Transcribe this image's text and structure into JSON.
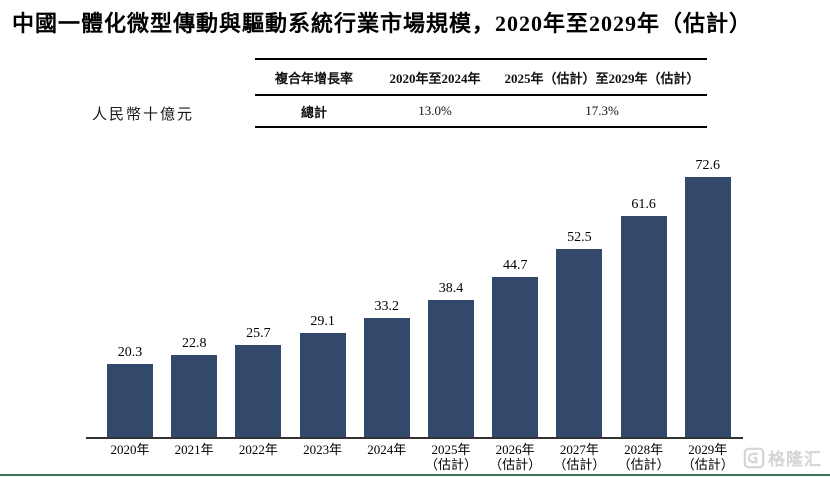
{
  "title": "中國一體化微型傳動與驅動系統行業市場規模，2020年至2029年（估計）",
  "cagr_table": {
    "header": [
      "複合年增長率",
      "2020年至2024年",
      "2025年（估計）至2029年（估計）"
    ],
    "row": [
      "總計",
      "13.0%",
      "17.3%"
    ]
  },
  "chart_data": {
    "type": "bar",
    "title": "中國一體化微型傳動與驅動系統行業市場規模，2020年至2029年（估計）",
    "ylabel": "人民幣十億元",
    "categories": [
      "2020年",
      "2021年",
      "2022年",
      "2023年",
      "2024年",
      "2025年",
      "2026年",
      "2027年",
      "2028年",
      "2029年"
    ],
    "category_sublabels": [
      "",
      "",
      "",
      "",
      "",
      "（估計）",
      "（估計）",
      "（估計）",
      "（估計）",
      "（估計）"
    ],
    "values": [
      20.3,
      22.8,
      25.7,
      29.1,
      33.2,
      38.4,
      44.7,
      52.5,
      61.6,
      72.6
    ],
    "ylim": [
      0,
      75
    ],
    "grid": false,
    "legend": null,
    "data_labels": true,
    "cagr_2020_2024": "13.0%",
    "cagr_2025_2029": "17.3%"
  },
  "watermark": {
    "text": "格隆汇",
    "icon": "gelonghui-logo-icon"
  },
  "colors": {
    "bar": "#32496C",
    "axis": "#333333",
    "table_rule": "#000000",
    "bottom_rule": "#3C7455",
    "watermark": "#D5D5D5",
    "text": "#000000"
  }
}
